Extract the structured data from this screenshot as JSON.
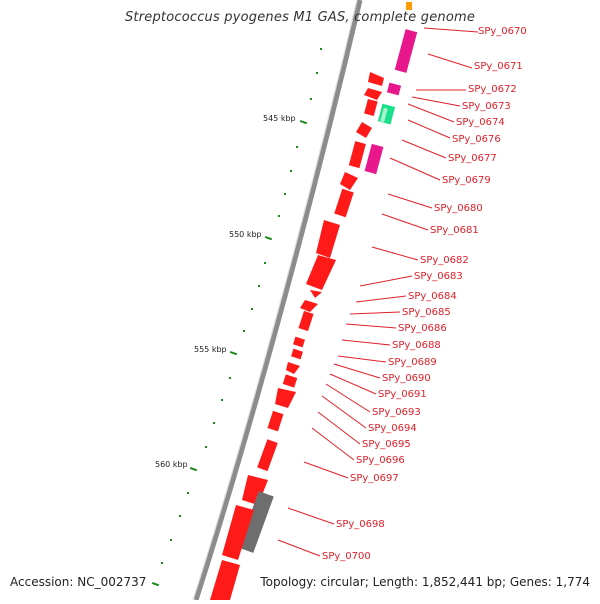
{
  "map": {
    "title": "Streptococcus pyogenes M1 GAS, complete genome",
    "accession_text": "Accession: NC_002737",
    "summary_text": "Topology: circular; Length: 1,852,441 bp; Genes: 1,774"
  },
  "colors": {
    "gene_forward": "#ff1a1a",
    "gene_dark": "#c40000",
    "gene_pink": "#e8188c",
    "gene_green": "#19e08a",
    "gene_gray": "#6e6e6e",
    "label": "#e0202a",
    "tick": "#1a8a1a",
    "backbone": "#8c8c8c"
  },
  "scale_labels": [
    "545 kbp",
    "550 kbp",
    "555 kbp",
    "560 kbp"
  ],
  "genes": [
    {
      "name": "SPy_0670",
      "color": "gene_pink"
    },
    {
      "name": "SPy_0671",
      "color": "gene_pink"
    },
    {
      "name": "SPy_0672",
      "color": "gene_pink"
    },
    {
      "name": "SPy_0673",
      "color": "gene_forward"
    },
    {
      "name": "SPy_0674",
      "color": "gene_forward"
    },
    {
      "name": "SPy_0676",
      "color": "gene_green"
    },
    {
      "name": "SPy_0677",
      "color": "gene_pink"
    },
    {
      "name": "SPy_0679",
      "color": "gene_pink"
    },
    {
      "name": "SPy_0680",
      "color": "gene_forward"
    },
    {
      "name": "SPy_0681",
      "color": "gene_forward"
    },
    {
      "name": "SPy_0682",
      "color": "gene_forward"
    },
    {
      "name": "SPy_0683",
      "color": "gene_forward"
    },
    {
      "name": "SPy_0684",
      "color": "gene_forward"
    },
    {
      "name": "SPy_0685",
      "color": "gene_forward"
    },
    {
      "name": "SPy_0686",
      "color": "gene_forward"
    },
    {
      "name": "SPy_0688",
      "color": "gene_forward"
    },
    {
      "name": "SPy_0689",
      "color": "gene_forward"
    },
    {
      "name": "SPy_0690",
      "color": "gene_forward"
    },
    {
      "name": "SPy_0691",
      "color": "gene_forward"
    },
    {
      "name": "SPy_0693",
      "color": "gene_forward"
    },
    {
      "name": "SPy_0694",
      "color": "gene_forward"
    },
    {
      "name": "SPy_0695",
      "color": "gene_forward"
    },
    {
      "name": "SPy_0696",
      "color": "gene_forward"
    },
    {
      "name": "SPy_0697",
      "color": "gene_forward"
    },
    {
      "name": "SPy_0698",
      "color": "gene_gray"
    },
    {
      "name": "SPy_0700",
      "color": "gene_forward"
    }
  ]
}
